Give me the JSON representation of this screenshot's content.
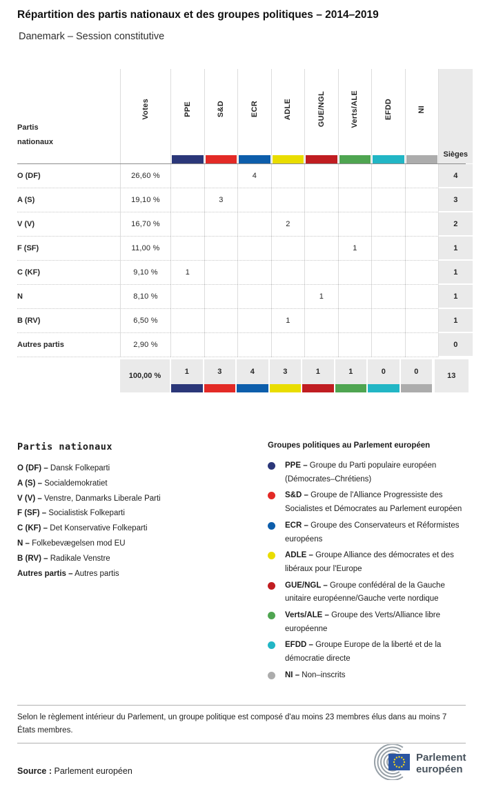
{
  "header": {
    "title": "Répartition des partis nationaux et des groupes politiques – 2014–2019",
    "subtitle": "Danemark – Session constitutive"
  },
  "table": {
    "party_col_label": "Partis nationaux",
    "votes_col_label": "Votes",
    "seats_col_label": "Sièges",
    "groups": [
      {
        "label": "PPE",
        "color": "#2b3779"
      },
      {
        "label": "S&D",
        "color": "#e32a26"
      },
      {
        "label": "ECR",
        "color": "#0d5eab"
      },
      {
        "label": "ADLE",
        "color": "#e9dd00"
      },
      {
        "label": "GUE/NGL",
        "color": "#c01d21"
      },
      {
        "label": "Verts/ALE",
        "color": "#4fa551"
      },
      {
        "label": "EFDD",
        "color": "#22b6c5"
      },
      {
        "label": "NI",
        "color": "#acacac"
      }
    ],
    "rows": [
      {
        "party": "O (DF)",
        "votes": "26,60 %",
        "cells": [
          "",
          "",
          "4",
          "",
          "",
          "",
          "",
          ""
        ],
        "seats": "4"
      },
      {
        "party": "A (S)",
        "votes": "19,10 %",
        "cells": [
          "",
          "3",
          "",
          "",
          "",
          "",
          "",
          ""
        ],
        "seats": "3"
      },
      {
        "party": "V (V)",
        "votes": "16,70 %",
        "cells": [
          "",
          "",
          "",
          "2",
          "",
          "",
          "",
          ""
        ],
        "seats": "2"
      },
      {
        "party": "F (SF)",
        "votes": "11,00 %",
        "cells": [
          "",
          "",
          "",
          "",
          "",
          "1",
          "",
          ""
        ],
        "seats": "1"
      },
      {
        "party": "C (KF)",
        "votes": "9,10 %",
        "cells": [
          "1",
          "",
          "",
          "",
          "",
          "",
          "",
          ""
        ],
        "seats": "1"
      },
      {
        "party": "N",
        "votes": "8,10 %",
        "cells": [
          "",
          "",
          "",
          "",
          "1",
          "",
          "",
          ""
        ],
        "seats": "1"
      },
      {
        "party": "B (RV)",
        "votes": "6,50 %",
        "cells": [
          "",
          "",
          "",
          "1",
          "",
          "",
          "",
          ""
        ],
        "seats": "1"
      },
      {
        "party": "Autres partis",
        "votes": "2,90 %",
        "cells": [
          "",
          "",
          "",
          "",
          "",
          "",
          "",
          ""
        ],
        "seats": "0"
      }
    ],
    "total": {
      "votes": "100,00 %",
      "cells": [
        "1",
        "3",
        "4",
        "3",
        "1",
        "1",
        "0",
        "0"
      ],
      "seats": "13"
    }
  },
  "legend_parties": {
    "heading": "Partis nationaux",
    "items": [
      {
        "abbr": "O (DF) –",
        "name": "Dansk Folkeparti"
      },
      {
        "abbr": "A (S) –",
        "name": "Socialdemokratiet"
      },
      {
        "abbr": "V (V) –",
        "name": "Venstre, Danmarks Liberale Parti"
      },
      {
        "abbr": "F (SF) –",
        "name": "Socialistisk Folkeparti"
      },
      {
        "abbr": "C (KF) –",
        "name": "Det Konservative Folkeparti"
      },
      {
        "abbr": "N –",
        "name": "Folkebevægelsen mod EU"
      },
      {
        "abbr": "B (RV) –",
        "name": "Radikale Venstre"
      },
      {
        "abbr": "Autres partis –",
        "name": "Autres partis"
      }
    ]
  },
  "legend_groups": {
    "heading": "Groupes politiques au Parlement européen",
    "items": [
      {
        "abbr": "PPE –",
        "name": "Groupe du Parti populaire européen (Démocrates–Chrétiens)",
        "color": "#2b3779"
      },
      {
        "abbr": "S&D –",
        "name": "Groupe de l'Alliance Progressiste des Socialistes et Démocrates au Parlement européen",
        "color": "#e32a26"
      },
      {
        "abbr": "ECR –",
        "name": "Groupe des Conservateurs et Réformistes européens",
        "color": "#0d5eab"
      },
      {
        "abbr": "ADLE –",
        "name": "Groupe Alliance des démocrates et des libéraux pour l'Europe",
        "color": "#e9dd00"
      },
      {
        "abbr": "GUE/NGL –",
        "name": "Groupe confédéral de la Gauche unitaire européenne/Gauche verte nordique",
        "color": "#c01d21"
      },
      {
        "abbr": "Verts/ALE –",
        "name": "Groupe des Verts/Alliance libre européenne",
        "color": "#4fa551"
      },
      {
        "abbr": "EFDD –",
        "name": "Groupe Europe de la liberté et de la démocratie directe",
        "color": "#22b6c5"
      },
      {
        "abbr": "NI –",
        "name": "Non–inscrits",
        "color": "#acacac"
      }
    ]
  },
  "footer": {
    "note": "Selon le règlement intérieur du Parlement, un groupe politique est composé d'au moins 23 membres élus dans au moins 7 États membres.",
    "source_label": "Source :",
    "source_value": "Parlement européen",
    "logo": {
      "line1": "Parlement",
      "line2": "européen",
      "flag_blue": "#2a55a2",
      "star_yellow": "#f7d917",
      "arc_grey": "#97a0a7",
      "text_color": "#47525c"
    }
  },
  "chart_data": {
    "type": "table",
    "title": "Répartition des partis nationaux et des groupes politiques – 2014–2019",
    "subtitle": "Danemark – Session constitutive",
    "columns": [
      "Partis nationaux",
      "Votes",
      "PPE",
      "S&D",
      "ECR",
      "ADLE",
      "GUE/NGL",
      "Verts/ALE",
      "EFDD",
      "NI",
      "Sièges"
    ],
    "rows": [
      [
        "O (DF)",
        "26,60 %",
        null,
        null,
        4,
        null,
        null,
        null,
        null,
        null,
        4
      ],
      [
        "A (S)",
        "19,10 %",
        null,
        3,
        null,
        null,
        null,
        null,
        null,
        null,
        3
      ],
      [
        "V (V)",
        "16,70 %",
        null,
        null,
        null,
        2,
        null,
        null,
        null,
        null,
        2
      ],
      [
        "F (SF)",
        "11,00 %",
        null,
        null,
        null,
        null,
        null,
        1,
        null,
        null,
        1
      ],
      [
        "C (KF)",
        "9,10 %",
        1,
        null,
        null,
        null,
        null,
        null,
        null,
        null,
        1
      ],
      [
        "N",
        "8,10 %",
        null,
        null,
        null,
        null,
        1,
        null,
        null,
        null,
        1
      ],
      [
        "B (RV)",
        "6,50 %",
        null,
        null,
        null,
        1,
        null,
        null,
        null,
        null,
        1
      ],
      [
        "Autres partis",
        "2,90 %",
        null,
        null,
        null,
        null,
        null,
        null,
        null,
        null,
        0
      ]
    ],
    "total_row": [
      "",
      "100,00 %",
      1,
      3,
      4,
      3,
      1,
      1,
      0,
      0,
      13
    ]
  }
}
